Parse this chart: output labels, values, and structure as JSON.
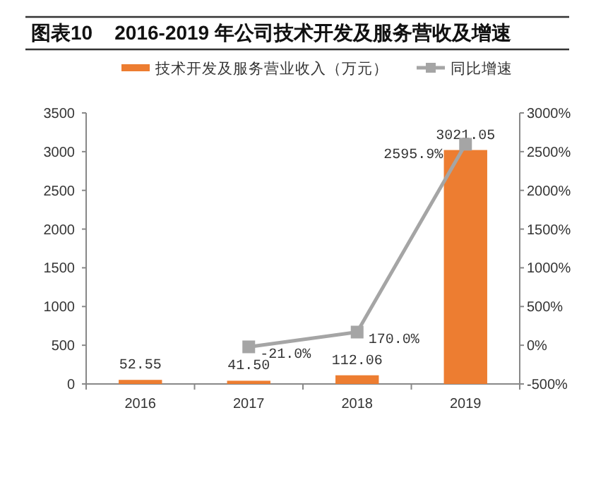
{
  "chart_data": {
    "type": "bar",
    "title": "图表10    2016-2019 年公司技术开发及服务营收及增速",
    "categories": [
      "2016",
      "2017",
      "2018",
      "2019"
    ],
    "series": [
      {
        "name": "技术开发及服务营业收入（万元）",
        "color": "#ed7d31",
        "values": [
          52.55,
          41.5,
          112.06,
          3021.05
        ],
        "value_labels": [
          "52.55",
          "41.50",
          "112.06",
          "3021.05"
        ]
      },
      {
        "name": "同比增速",
        "type": "line",
        "axis": "y2",
        "color": "#a5a5a5",
        "marker": "square",
        "values": [
          null,
          -21.0,
          170.0,
          2595.9
        ],
        "value_labels": [
          null,
          "-21.0%",
          "170.0%",
          "2595.9%"
        ]
      }
    ],
    "ylim": [
      0,
      3500
    ],
    "yticks": [
      0,
      500,
      1000,
      1500,
      2000,
      2500,
      3000,
      3500
    ],
    "y2lim": [
      -500,
      3000
    ],
    "y2ticks": [
      {
        "value": -500,
        "label": "-500%"
      },
      {
        "value": 0,
        "label": "0%"
      },
      {
        "value": 500,
        "label": "500%"
      },
      {
        "value": 1000,
        "label": "1000%"
      },
      {
        "value": 1500,
        "label": "1500%"
      },
      {
        "value": 2000,
        "label": "2000%"
      },
      {
        "value": 2500,
        "label": "2500%"
      },
      {
        "value": 3000,
        "label": "3000%"
      }
    ],
    "grid": false,
    "legend": "top"
  }
}
